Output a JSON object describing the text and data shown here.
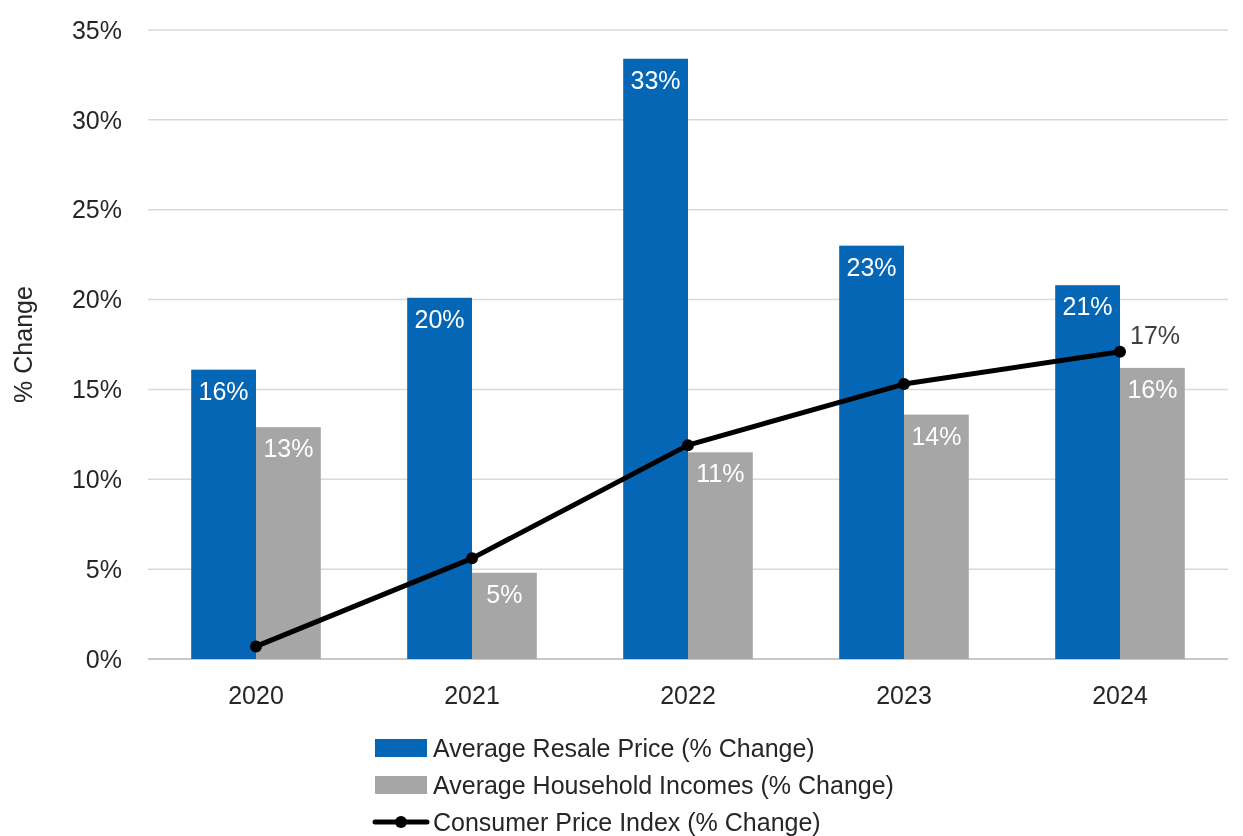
{
  "chart_data": {
    "type": "bar",
    "ylabel": "% Change",
    "categories": [
      "2020",
      "2021",
      "2022",
      "2023",
      "2024"
    ],
    "series": [
      {
        "name": "Average Resale Price (% Change)",
        "color": "#0466b5",
        "values": [
          16.1,
          20.1,
          33.4,
          23.0,
          20.8
        ],
        "value_labels": [
          "16%",
          "20%",
          "33%",
          "23%",
          "21%"
        ]
      },
      {
        "name": "Average Household Incomes (% Change)",
        "color": "#a6a6a6",
        "values": [
          12.9,
          4.8,
          11.5,
          13.6,
          16.2
        ],
        "value_labels": [
          "13%",
          "5%",
          "11%",
          "14%",
          "16%"
        ]
      },
      {
        "name": "Consumer Price Index (% Change)",
        "type": "line",
        "color": "#000000",
        "values": [
          0.7,
          5.6,
          11.9,
          15.3,
          17.1
        ],
        "value_labels": [
          null,
          null,
          null,
          null,
          "17%"
        ],
        "marker": "circle"
      }
    ],
    "ylim": [
      0,
      35
    ],
    "yticks": [
      {
        "value": 0,
        "label": "0%"
      },
      {
        "value": 5,
        "label": "5%"
      },
      {
        "value": 10,
        "label": "10%"
      },
      {
        "value": 15,
        "label": "15%"
      },
      {
        "value": 20,
        "label": "20%"
      },
      {
        "value": 25,
        "label": "25%"
      },
      {
        "value": 30,
        "label": "30%"
      },
      {
        "value": 35,
        "label": "35%"
      }
    ],
    "grid": "y",
    "legend": "bottom"
  }
}
